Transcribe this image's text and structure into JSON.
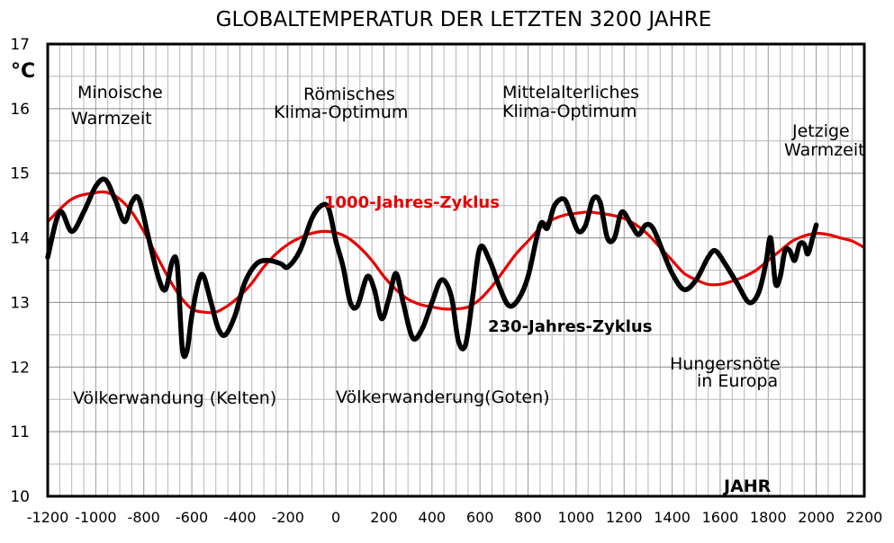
{
  "chart_data": {
    "type": "line",
    "title": "GLOBALTEMPERATUR DER LETZTEN 3200 JAHRE",
    "ylabel": "°C",
    "xlabel": "JAHR",
    "xlim": [
      -1200,
      2200
    ],
    "ylim": [
      10,
      17
    ],
    "x_ticks": [
      "-1200",
      "-1000",
      "-800",
      "-600",
      "-400",
      "-200",
      "0",
      "200",
      "400",
      "600",
      "800",
      "1000",
      "1200",
      "1400",
      "1600",
      "1800",
      "2000",
      "2200"
    ],
    "y_ticks": [
      "10",
      "11",
      "12",
      "13",
      "14",
      "15",
      "16",
      "17"
    ],
    "grid": true,
    "series": [
      {
        "name": "230-Jahres-Zyklus",
        "color": "#000000",
        "points": [
          [
            -1200,
            13.7
          ],
          [
            -1150,
            14.4
          ],
          [
            -1100,
            14.1
          ],
          [
            -1050,
            14.4
          ],
          [
            -1000,
            14.8
          ],
          [
            -960,
            14.9
          ],
          [
            -920,
            14.6
          ],
          [
            -880,
            14.25
          ],
          [
            -850,
            14.55
          ],
          [
            -820,
            14.6
          ],
          [
            -780,
            14.0
          ],
          [
            -740,
            13.4
          ],
          [
            -710,
            13.2
          ],
          [
            -680,
            13.65
          ],
          [
            -660,
            13.55
          ],
          [
            -640,
            12.3
          ],
          [
            -620,
            12.25
          ],
          [
            -600,
            12.8
          ],
          [
            -570,
            13.35
          ],
          [
            -550,
            13.4
          ],
          [
            -520,
            13.0
          ],
          [
            -490,
            12.6
          ],
          [
            -460,
            12.5
          ],
          [
            -420,
            12.8
          ],
          [
            -380,
            13.3
          ],
          [
            -330,
            13.6
          ],
          [
            -280,
            13.65
          ],
          [
            -230,
            13.6
          ],
          [
            -200,
            13.55
          ],
          [
            -150,
            13.8
          ],
          [
            -100,
            14.3
          ],
          [
            -60,
            14.5
          ],
          [
            -30,
            14.45
          ],
          [
            0,
            13.95
          ],
          [
            30,
            13.55
          ],
          [
            60,
            13.0
          ],
          [
            90,
            12.95
          ],
          [
            130,
            13.4
          ],
          [
            160,
            13.2
          ],
          [
            190,
            12.75
          ],
          [
            220,
            13.05
          ],
          [
            250,
            13.45
          ],
          [
            280,
            13.0
          ],
          [
            320,
            12.45
          ],
          [
            360,
            12.6
          ],
          [
            400,
            13.0
          ],
          [
            440,
            13.35
          ],
          [
            480,
            13.1
          ],
          [
            510,
            12.4
          ],
          [
            540,
            12.35
          ],
          [
            570,
            13.1
          ],
          [
            600,
            13.85
          ],
          [
            640,
            13.65
          ],
          [
            680,
            13.25
          ],
          [
            720,
            12.95
          ],
          [
            760,
            13.05
          ],
          [
            800,
            13.4
          ],
          [
            850,
            14.2
          ],
          [
            880,
            14.15
          ],
          [
            910,
            14.5
          ],
          [
            950,
            14.6
          ],
          [
            980,
            14.35
          ],
          [
            1010,
            14.1
          ],
          [
            1040,
            14.2
          ],
          [
            1070,
            14.6
          ],
          [
            1100,
            14.55
          ],
          [
            1130,
            14.0
          ],
          [
            1160,
            14.0
          ],
          [
            1190,
            14.4
          ],
          [
            1230,
            14.2
          ],
          [
            1260,
            14.05
          ],
          [
            1290,
            14.2
          ],
          [
            1320,
            14.15
          ],
          [
            1360,
            13.8
          ],
          [
            1400,
            13.45
          ],
          [
            1450,
            13.2
          ],
          [
            1500,
            13.35
          ],
          [
            1550,
            13.7
          ],
          [
            1580,
            13.8
          ],
          [
            1620,
            13.6
          ],
          [
            1670,
            13.3
          ],
          [
            1720,
            13.0
          ],
          [
            1760,
            13.15
          ],
          [
            1790,
            13.6
          ],
          [
            1810,
            14.0
          ],
          [
            1830,
            13.3
          ],
          [
            1850,
            13.4
          ],
          [
            1870,
            13.8
          ],
          [
            1890,
            13.8
          ],
          [
            1910,
            13.65
          ],
          [
            1930,
            13.9
          ],
          [
            1950,
            13.9
          ],
          [
            1965,
            13.75
          ],
          [
            1985,
            14.0
          ],
          [
            2000,
            14.2
          ]
        ]
      },
      {
        "name": "1000-Jahres-Zyklus",
        "color": "#e60000",
        "points": [
          [
            -1200,
            14.25
          ],
          [
            -1100,
            14.6
          ],
          [
            -1000,
            14.7
          ],
          [
            -950,
            14.7
          ],
          [
            -900,
            14.6
          ],
          [
            -850,
            14.4
          ],
          [
            -800,
            14.1
          ],
          [
            -750,
            13.75
          ],
          [
            -700,
            13.4
          ],
          [
            -650,
            13.1
          ],
          [
            -600,
            12.9
          ],
          [
            -550,
            12.85
          ],
          [
            -500,
            12.85
          ],
          [
            -450,
            12.95
          ],
          [
            -400,
            13.1
          ],
          [
            -350,
            13.3
          ],
          [
            -300,
            13.55
          ],
          [
            -250,
            13.75
          ],
          [
            -200,
            13.9
          ],
          [
            -150,
            14.0
          ],
          [
            -100,
            14.07
          ],
          [
            -50,
            14.1
          ],
          [
            0,
            14.08
          ],
          [
            50,
            14.0
          ],
          [
            100,
            13.85
          ],
          [
            150,
            13.65
          ],
          [
            200,
            13.4
          ],
          [
            250,
            13.2
          ],
          [
            300,
            13.05
          ],
          [
            350,
            12.97
          ],
          [
            400,
            12.93
          ],
          [
            450,
            12.9
          ],
          [
            500,
            12.9
          ],
          [
            550,
            12.93
          ],
          [
            600,
            13.05
          ],
          [
            650,
            13.25
          ],
          [
            700,
            13.5
          ],
          [
            750,
            13.75
          ],
          [
            800,
            13.95
          ],
          [
            850,
            14.15
          ],
          [
            900,
            14.28
          ],
          [
            950,
            14.35
          ],
          [
            1000,
            14.38
          ],
          [
            1050,
            14.4
          ],
          [
            1100,
            14.38
          ],
          [
            1150,
            14.35
          ],
          [
            1200,
            14.3
          ],
          [
            1250,
            14.2
          ],
          [
            1300,
            14.05
          ],
          [
            1350,
            13.85
          ],
          [
            1400,
            13.65
          ],
          [
            1450,
            13.45
          ],
          [
            1500,
            13.35
          ],
          [
            1550,
            13.28
          ],
          [
            1600,
            13.28
          ],
          [
            1650,
            13.33
          ],
          [
            1700,
            13.4
          ],
          [
            1750,
            13.5
          ],
          [
            1800,
            13.65
          ],
          [
            1850,
            13.8
          ],
          [
            1900,
            13.95
          ],
          [
            1950,
            14.03
          ],
          [
            2000,
            14.07
          ],
          [
            2050,
            14.05
          ],
          [
            2100,
            14.0
          ],
          [
            2150,
            13.95
          ],
          [
            2200,
            13.85
          ]
        ]
      }
    ],
    "annotations": {
      "minoan_1": "Minoische",
      "minoan_2": "Warmzeit",
      "roman_1": "Römisches",
      "roman_2": "Klima-Optimum",
      "medieval_1": "Mittelalterliches",
      "medieval_2": "Klima-Optimum",
      "current_1": "Jetzige",
      "current_2": "Warmzeit",
      "migration_celts": "Völkerwandung (Kelten)",
      "migration_goths": "Völkerwanderung(Goten)",
      "famine_1": "Hungersnöte",
      "famine_2": "in Europa"
    },
    "series_labels": {
      "red": "1000-Jahres-Zyklus",
      "black": "230-Jahres-Zyklus"
    }
  }
}
